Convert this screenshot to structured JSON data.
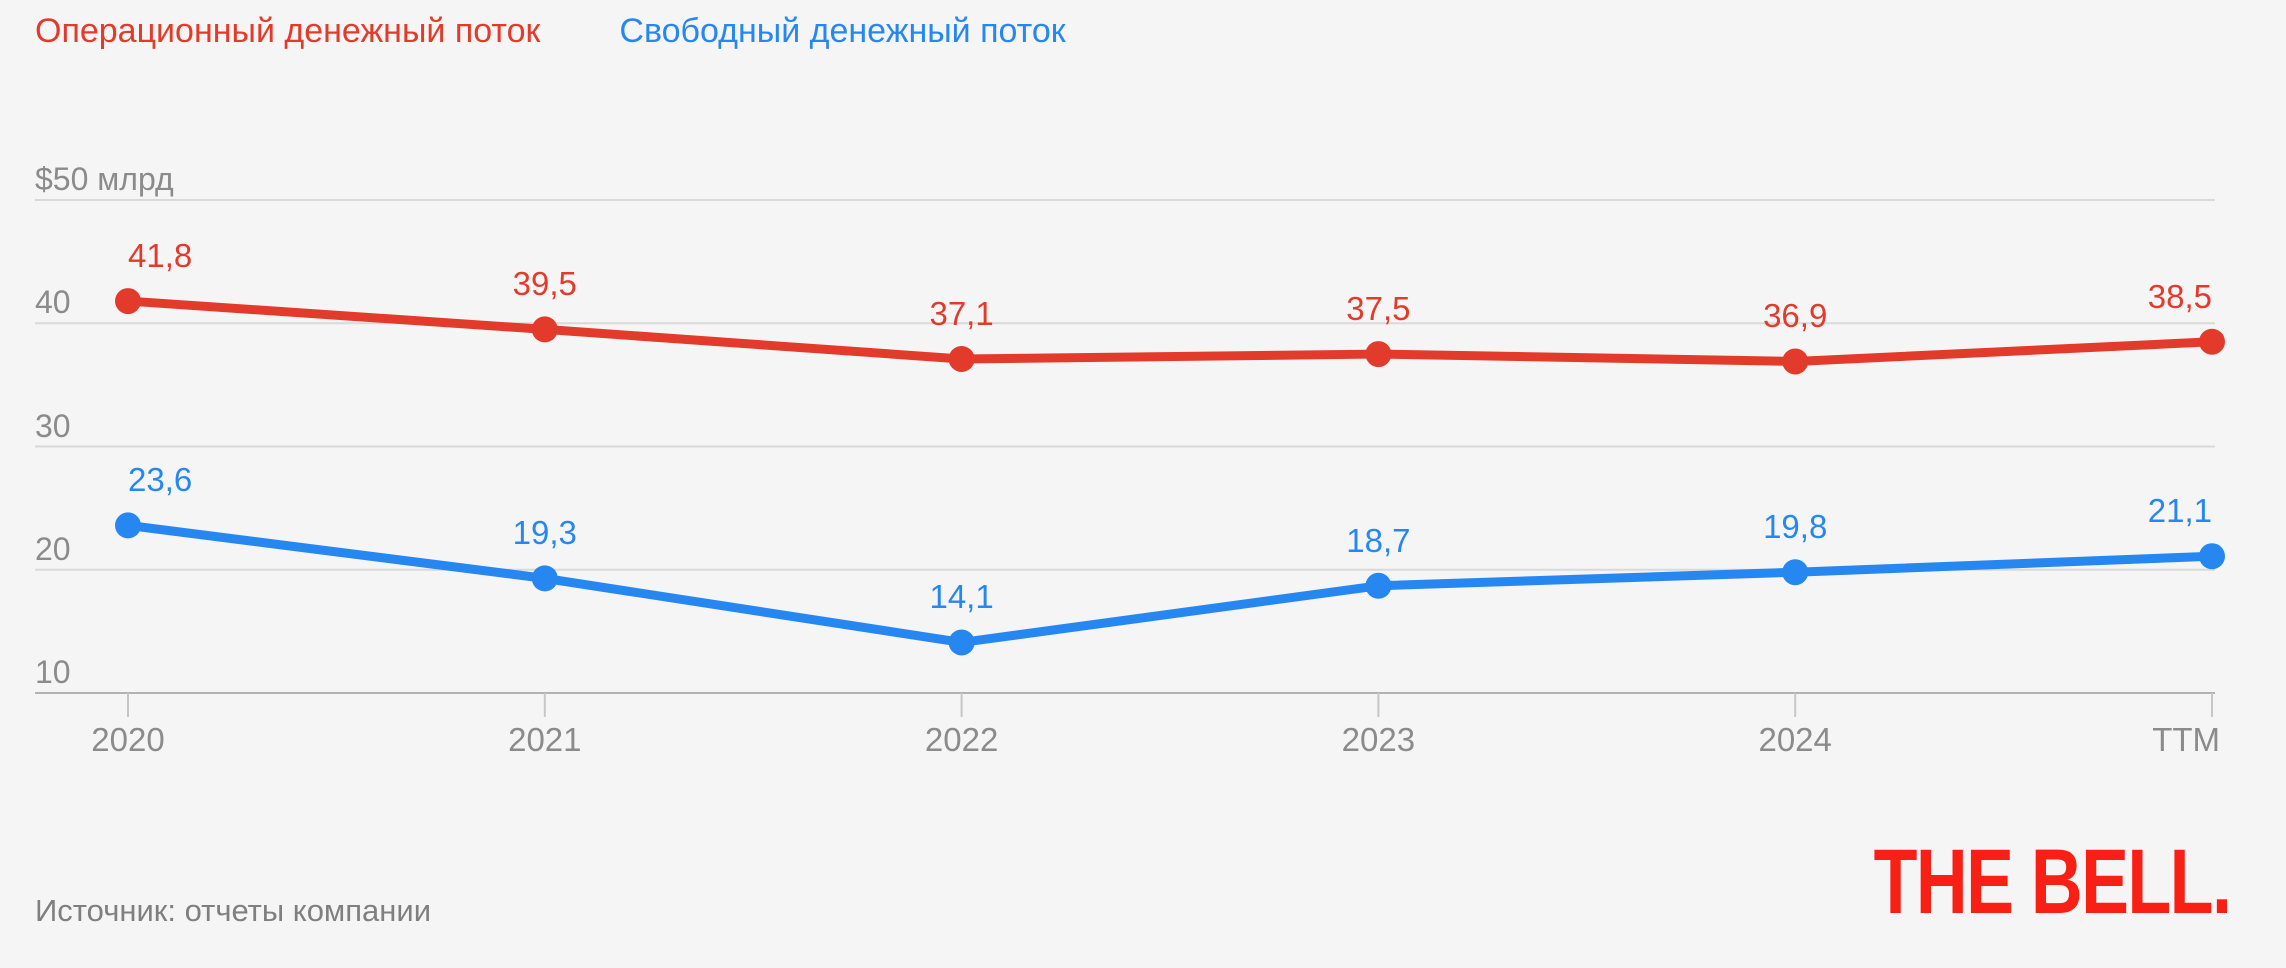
{
  "chart_data": {
    "type": "line",
    "categories": [
      "2020",
      "2021",
      "2022",
      "2023",
      "2024",
      "TTM"
    ],
    "series": [
      {
        "name": "Операционный денежный поток",
        "color": "#e23b2c",
        "values": [
          41.8,
          39.5,
          37.1,
          37.5,
          36.9,
          38.5
        ],
        "labels": [
          "41,8",
          "39,5",
          "37,1",
          "37,5",
          "36,9",
          "38,5"
        ]
      },
      {
        "name": "Свободный денежный поток",
        "color": "#2787f0",
        "values": [
          23.6,
          19.3,
          14.1,
          18.7,
          19.8,
          21.1
        ],
        "labels": [
          "23,6",
          "19,3",
          "14,1",
          "18,7",
          "19,8",
          "21,1"
        ]
      }
    ],
    "y_axis": {
      "min": 10,
      "max": 50,
      "ticks": [
        {
          "value": 50,
          "label": "$50 млрд"
        },
        {
          "value": 40,
          "label": "40"
        },
        {
          "value": 30,
          "label": "30"
        },
        {
          "value": 20,
          "label": "20"
        },
        {
          "value": 10,
          "label": "10"
        }
      ],
      "grid": true
    },
    "legend_position": "top-left",
    "grid_color": "#d9d9d9",
    "axis_color": "#b2b2b2",
    "tick_color": "#c6c6c6",
    "axis_text_color": "#8b8b8b"
  },
  "footer": {
    "source": "Источник: отчеты компании",
    "logo": "THE BELL.",
    "logo_color": "#f81f14"
  }
}
